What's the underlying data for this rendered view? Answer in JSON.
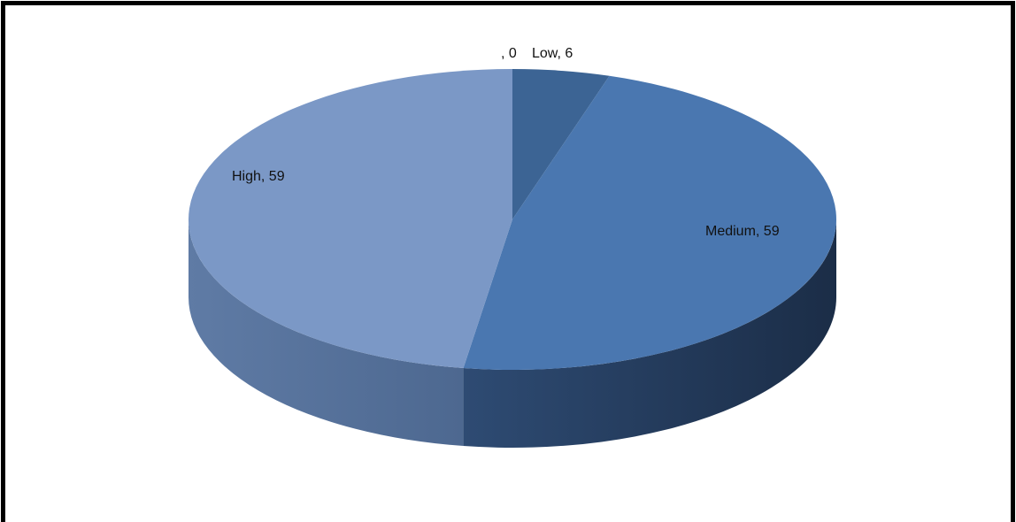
{
  "chart_data": {
    "type": "pie",
    "style": "3d",
    "slices": [
      {
        "category": "",
        "value": 0,
        "label": ", 0",
        "color": "#3C6494"
      },
      {
        "category": "Low",
        "value": 6,
        "label": "Low, 6",
        "color": "#3C6494"
      },
      {
        "category": "Medium",
        "value": 59,
        "label": "Medium, 59",
        "color": "#4A77B0"
      },
      {
        "category": "High",
        "value": 59,
        "label": "High, 59",
        "color": "#7B98C6"
      }
    ],
    "legend": "none"
  }
}
